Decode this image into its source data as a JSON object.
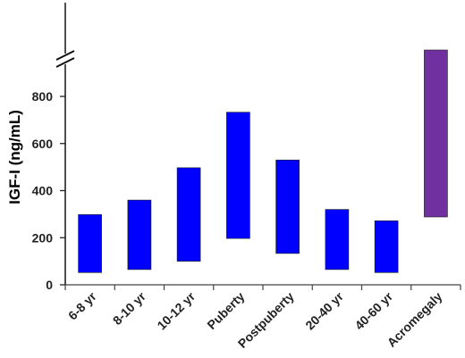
{
  "chart_data": {
    "type": "bar",
    "subtype": "floating-range",
    "title": "",
    "xlabel": "",
    "ylabel": "IGF-I (ng/mL)",
    "ylim": [
      0,
      1000
    ],
    "axis_break_above": 1000,
    "yticks": [
      0,
      200,
      400,
      600,
      800
    ],
    "grid": false,
    "categories": [
      "6-8 yr",
      "8-10 yr",
      "10-12 yr",
      "Puberty",
      "Postpuberty",
      "20-40 yr",
      "40-60 yr",
      "Acromegaly"
    ],
    "ranges": [
      [
        52,
        298
      ],
      [
        65,
        360
      ],
      [
        100,
        497
      ],
      [
        197,
        733
      ],
      [
        133,
        530
      ],
      [
        65,
        320
      ],
      [
        52,
        272
      ],
      [
        288,
        1000
      ]
    ],
    "ranges_note": "[low, high] per category; Acromegaly bar extends past the axis break",
    "colors": [
      "#0000FF",
      "#0000FF",
      "#0000FF",
      "#0000FF",
      "#0000FF",
      "#0000FF",
      "#0000FF",
      "#7030A0"
    ]
  }
}
